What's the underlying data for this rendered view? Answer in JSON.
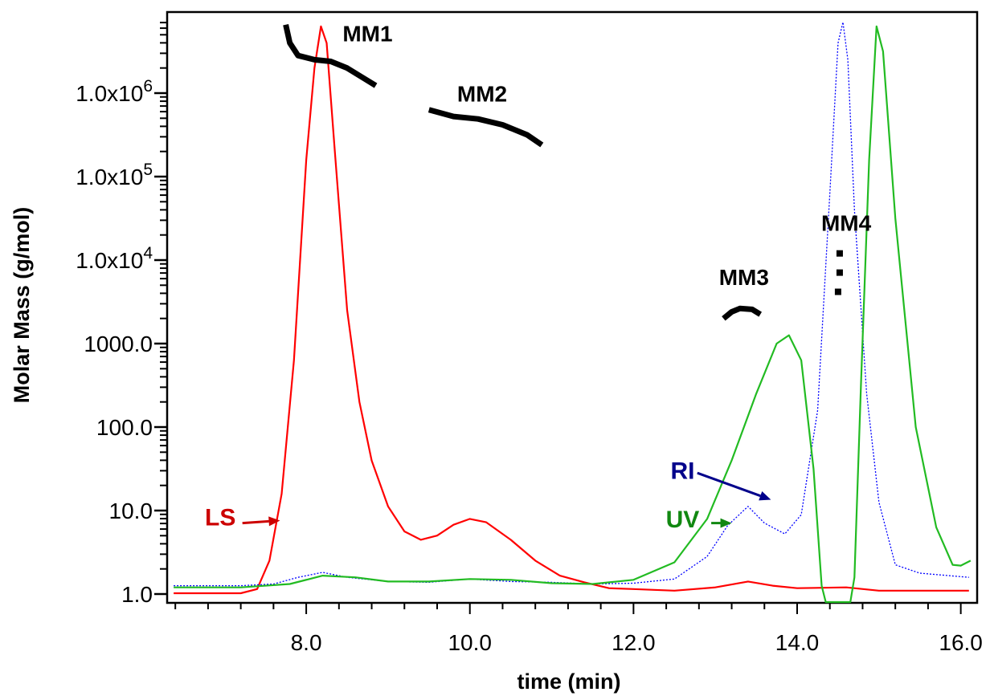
{
  "chart_data": {
    "type": "line",
    "title": "",
    "xlabel": "time (min)",
    "ylabel": "Molar Mass (g/mol)",
    "yscale": "log",
    "xlim": [
      6.3,
      16.2
    ],
    "ylim_decades": [
      0,
      6.85
    ],
    "x_ticks": [
      {
        "value": 8.0,
        "label": "8.0"
      },
      {
        "value": 10.0,
        "label": "10.0"
      },
      {
        "value": 12.0,
        "label": "12.0"
      },
      {
        "value": 14.0,
        "label": "14.0"
      },
      {
        "value": 16.0,
        "label": "16.0"
      }
    ],
    "y_ticks": [
      {
        "decade": 0,
        "label": "1.0"
      },
      {
        "decade": 1,
        "label": "10.0"
      },
      {
        "decade": 2,
        "label": "100.0"
      },
      {
        "decade": 3,
        "label": "1000.0"
      },
      {
        "decade": 4,
        "base": "1.0x10",
        "exp": "4"
      },
      {
        "decade": 5,
        "base": "1.0x10",
        "exp": "5"
      },
      {
        "decade": 6,
        "base": "1.0x10",
        "exp": "6"
      }
    ],
    "detector_series": [
      {
        "name": "LS",
        "color": "#ff0000",
        "style": "solid",
        "points": [
          [
            6.38,
            0.01
          ],
          [
            7.2,
            0.01
          ],
          [
            7.4,
            0.06
          ],
          [
            7.55,
            0.4
          ],
          [
            7.7,
            1.2
          ],
          [
            7.85,
            2.8
          ],
          [
            8.0,
            5.2
          ],
          [
            8.1,
            6.3
          ],
          [
            8.18,
            6.8
          ],
          [
            8.25,
            6.6
          ],
          [
            8.35,
            5.3
          ],
          [
            8.5,
            3.4
          ],
          [
            8.65,
            2.3
          ],
          [
            8.8,
            1.6
          ],
          [
            9.0,
            1.05
          ],
          [
            9.2,
            0.75
          ],
          [
            9.4,
            0.65
          ],
          [
            9.6,
            0.7
          ],
          [
            9.8,
            0.83
          ],
          [
            10.0,
            0.9
          ],
          [
            10.2,
            0.86
          ],
          [
            10.5,
            0.65
          ],
          [
            10.8,
            0.4
          ],
          [
            11.1,
            0.22
          ],
          [
            11.4,
            0.14
          ],
          [
            11.7,
            0.07
          ],
          [
            12.0,
            0.06
          ],
          [
            12.5,
            0.04
          ],
          [
            13.0,
            0.08
          ],
          [
            13.4,
            0.15
          ],
          [
            13.7,
            0.1
          ],
          [
            14.0,
            0.07
          ],
          [
            14.6,
            0.08
          ],
          [
            15.0,
            0.04
          ],
          [
            16.1,
            0.04
          ]
        ]
      },
      {
        "name": "RI",
        "color": "#0000ff",
        "style": "dotted",
        "points": [
          [
            6.38,
            0.1
          ],
          [
            7.2,
            0.1
          ],
          [
            7.6,
            0.12
          ],
          [
            7.9,
            0.2
          ],
          [
            8.2,
            0.26
          ],
          [
            8.5,
            0.2
          ],
          [
            9.0,
            0.15
          ],
          [
            9.5,
            0.14
          ],
          [
            10.0,
            0.18
          ],
          [
            10.5,
            0.15
          ],
          [
            11.0,
            0.14
          ],
          [
            11.5,
            0.12
          ],
          [
            12.0,
            0.13
          ],
          [
            12.5,
            0.18
          ],
          [
            12.9,
            0.45
          ],
          [
            13.15,
            0.82
          ],
          [
            13.4,
            1.05
          ],
          [
            13.6,
            0.85
          ],
          [
            13.85,
            0.72
          ],
          [
            14.05,
            0.95
          ],
          [
            14.25,
            2.2
          ],
          [
            14.4,
            4.8
          ],
          [
            14.5,
            6.6
          ],
          [
            14.56,
            6.85
          ],
          [
            14.62,
            6.4
          ],
          [
            14.7,
            4.6
          ],
          [
            14.85,
            2.4
          ],
          [
            15.0,
            1.1
          ],
          [
            15.2,
            0.35
          ],
          [
            15.5,
            0.25
          ],
          [
            16.1,
            0.2
          ]
        ]
      },
      {
        "name": "UV",
        "color": "#22bb22",
        "style": "solid",
        "points": [
          [
            6.38,
            0.08
          ],
          [
            7.2,
            0.08
          ],
          [
            7.8,
            0.12
          ],
          [
            8.2,
            0.22
          ],
          [
            8.6,
            0.2
          ],
          [
            9.0,
            0.15
          ],
          [
            9.5,
            0.15
          ],
          [
            10.0,
            0.18
          ],
          [
            10.5,
            0.17
          ],
          [
            11.0,
            0.13
          ],
          [
            11.5,
            0.12
          ],
          [
            12.0,
            0.17
          ],
          [
            12.5,
            0.38
          ],
          [
            12.9,
            0.9
          ],
          [
            13.2,
            1.6
          ],
          [
            13.5,
            2.4
          ],
          [
            13.75,
            3.0
          ],
          [
            13.9,
            3.1
          ],
          [
            14.05,
            2.8
          ],
          [
            14.2,
            1.5
          ],
          [
            14.3,
            0.1
          ],
          [
            14.35,
            -0.1
          ],
          [
            14.65,
            -0.1
          ],
          [
            14.7,
            0.2
          ],
          [
            14.78,
            2.5
          ],
          [
            14.88,
            5.2
          ],
          [
            14.97,
            6.8
          ],
          [
            15.05,
            6.5
          ],
          [
            15.2,
            4.5
          ],
          [
            15.45,
            2.0
          ],
          [
            15.7,
            0.8
          ],
          [
            15.9,
            0.35
          ],
          [
            16.0,
            0.34
          ],
          [
            16.12,
            0.4
          ]
        ]
      }
    ],
    "molar_mass_series": [
      {
        "name": "MM1",
        "label": "MM1",
        "points": [
          [
            7.75,
            6.82
          ],
          [
            7.8,
            6.6
          ],
          [
            7.9,
            6.45
          ],
          [
            8.1,
            6.4
          ],
          [
            8.3,
            6.38
          ],
          [
            8.5,
            6.3
          ],
          [
            8.7,
            6.18
          ],
          [
            8.85,
            6.09
          ]
        ],
        "label_at": [
          8.75,
          6.62
        ]
      },
      {
        "name": "MM2",
        "label": "MM2",
        "points": [
          [
            9.5,
            5.8
          ],
          [
            9.8,
            5.72
          ],
          [
            10.1,
            5.69
          ],
          [
            10.4,
            5.62
          ],
          [
            10.7,
            5.5
          ],
          [
            10.88,
            5.38
          ]
        ],
        "label_at": [
          10.15,
          5.9
        ]
      },
      {
        "name": "MM3",
        "label": "MM3",
        "points": [
          [
            13.1,
            3.3
          ],
          [
            13.2,
            3.38
          ],
          [
            13.3,
            3.42
          ],
          [
            13.45,
            3.41
          ],
          [
            13.55,
            3.35
          ]
        ],
        "label_at": [
          13.35,
          3.7
        ]
      },
      {
        "name": "MM4",
        "label": "MM4",
        "points": [
          [
            14.52,
            4.08
          ],
          [
            14.52,
            3.85
          ],
          [
            14.5,
            3.62
          ]
        ],
        "label_at": [
          14.6,
          4.35
        ]
      }
    ],
    "annotations": [
      {
        "text": "LS",
        "color": "#cc0000",
        "text_at": [
          6.95,
          0.82
        ],
        "arrow_from": [
          7.22,
          0.85
        ],
        "arrow_to": [
          7.68,
          0.88
        ]
      },
      {
        "text": "RI",
        "color": "#00008b",
        "text_at": [
          12.6,
          1.38
        ],
        "arrow_from": [
          12.78,
          1.45
        ],
        "arrow_to": [
          13.68,
          1.13
        ]
      },
      {
        "text": "UV",
        "color": "#118811",
        "text_at": [
          12.6,
          0.8
        ],
        "arrow_from": [
          12.95,
          0.85
        ],
        "arrow_to": [
          13.2,
          0.85
        ]
      }
    ]
  }
}
